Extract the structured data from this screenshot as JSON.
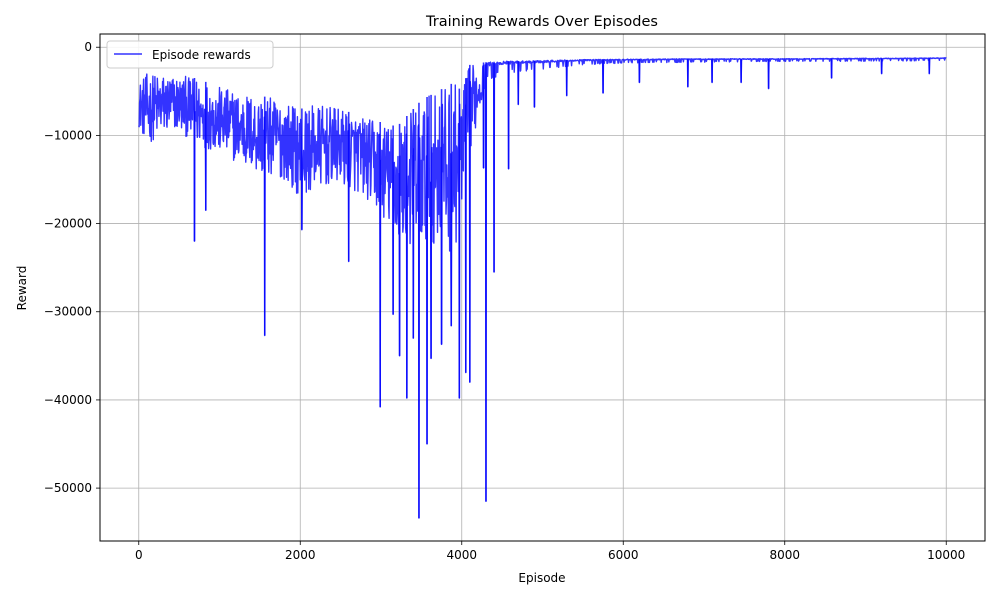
{
  "chart_data": {
    "type": "line",
    "title": "Training Rewards Over Episodes",
    "xlabel": "Episode",
    "ylabel": "Reward",
    "xlim": [
      -480,
      10480
    ],
    "ylim": [
      -56000,
      1500
    ],
    "xticks": [
      0,
      2000,
      4000,
      6000,
      8000,
      10000
    ],
    "xtick_labels": [
      "0",
      "2000",
      "4000",
      "6000",
      "8000",
      "10000"
    ],
    "yticks": [
      0,
      -10000,
      -20000,
      -30000,
      -40000,
      -50000
    ],
    "ytick_labels": [
      "0",
      "−10000",
      "−20000",
      "−30000",
      "−40000",
      "−50000"
    ],
    "grid": true,
    "legend": {
      "position": "upper-left",
      "entries": [
        "Episode rewards"
      ]
    },
    "series": [
      {
        "name": "Episode rewards",
        "color": "#0000ff",
        "opacity": 0.8,
        "envelope": {
          "x": [
            0,
            100,
            300,
            500,
            700,
            1000,
            1200,
            1500,
            1800,
            2000,
            2200,
            2500,
            2800,
            3000,
            3200,
            3500,
            3700,
            3900,
            4000,
            4100,
            4200,
            4300,
            4500,
            5000,
            5500,
            6000,
            7000,
            8000,
            9000,
            10000
          ],
          "upper": [
            -4000,
            -3000,
            -3000,
            -3200,
            -3500,
            -4500,
            -5000,
            -5500,
            -6000,
            -7000,
            -6500,
            -7000,
            -8000,
            -8500,
            -9000,
            -6000,
            -5000,
            -4000,
            -5000,
            -2000,
            -1800,
            -1700,
            -1600,
            -1500,
            -1400,
            -1350,
            -1300,
            -1300,
            -1250,
            -1200
          ],
          "lower": [
            -9000,
            -11000,
            -10000,
            -9500,
            -11000,
            -12000,
            -13000,
            -14500,
            -15000,
            -17000,
            -16000,
            -15500,
            -17000,
            -19000,
            -22000,
            -23000,
            -22000,
            -24000,
            -18000,
            -12000,
            -8000,
            -4000,
            -3000,
            -2500,
            -2000,
            -1800,
            -1700,
            -1600,
            -1600,
            -1500
          ]
        },
        "spikes": [
          {
            "x": 690,
            "y": -22000
          },
          {
            "x": 830,
            "y": -18500
          },
          {
            "x": 1560,
            "y": -32700
          },
          {
            "x": 2020,
            "y": -20700
          },
          {
            "x": 2600,
            "y": -24300
          },
          {
            "x": 2990,
            "y": -40800
          },
          {
            "x": 3150,
            "y": -30300
          },
          {
            "x": 3230,
            "y": -35000
          },
          {
            "x": 3320,
            "y": -39800
          },
          {
            "x": 3400,
            "y": -33000
          },
          {
            "x": 3470,
            "y": -53400
          },
          {
            "x": 3570,
            "y": -45000
          },
          {
            "x": 3620,
            "y": -35300
          },
          {
            "x": 3750,
            "y": -33700
          },
          {
            "x": 3870,
            "y": -31600
          },
          {
            "x": 3970,
            "y": -39800
          },
          {
            "x": 4050,
            "y": -36900
          },
          {
            "x": 4100,
            "y": -38000
          },
          {
            "x": 4270,
            "y": -13700
          },
          {
            "x": 4300,
            "y": -51500
          },
          {
            "x": 4400,
            "y": -25500
          },
          {
            "x": 4580,
            "y": -13800
          },
          {
            "x": 4700,
            "y": -6500
          },
          {
            "x": 4900,
            "y": -6800
          },
          {
            "x": 5300,
            "y": -5500
          },
          {
            "x": 5750,
            "y": -5200
          },
          {
            "x": 6200,
            "y": -4000
          },
          {
            "x": 6800,
            "y": -4500
          },
          {
            "x": 7100,
            "y": -4000
          },
          {
            "x": 7460,
            "y": -4000
          },
          {
            "x": 7800,
            "y": -4700
          },
          {
            "x": 8580,
            "y": -3500
          },
          {
            "x": 9200,
            "y": -3000
          },
          {
            "x": 9790,
            "y": -3000
          }
        ]
      }
    ]
  }
}
